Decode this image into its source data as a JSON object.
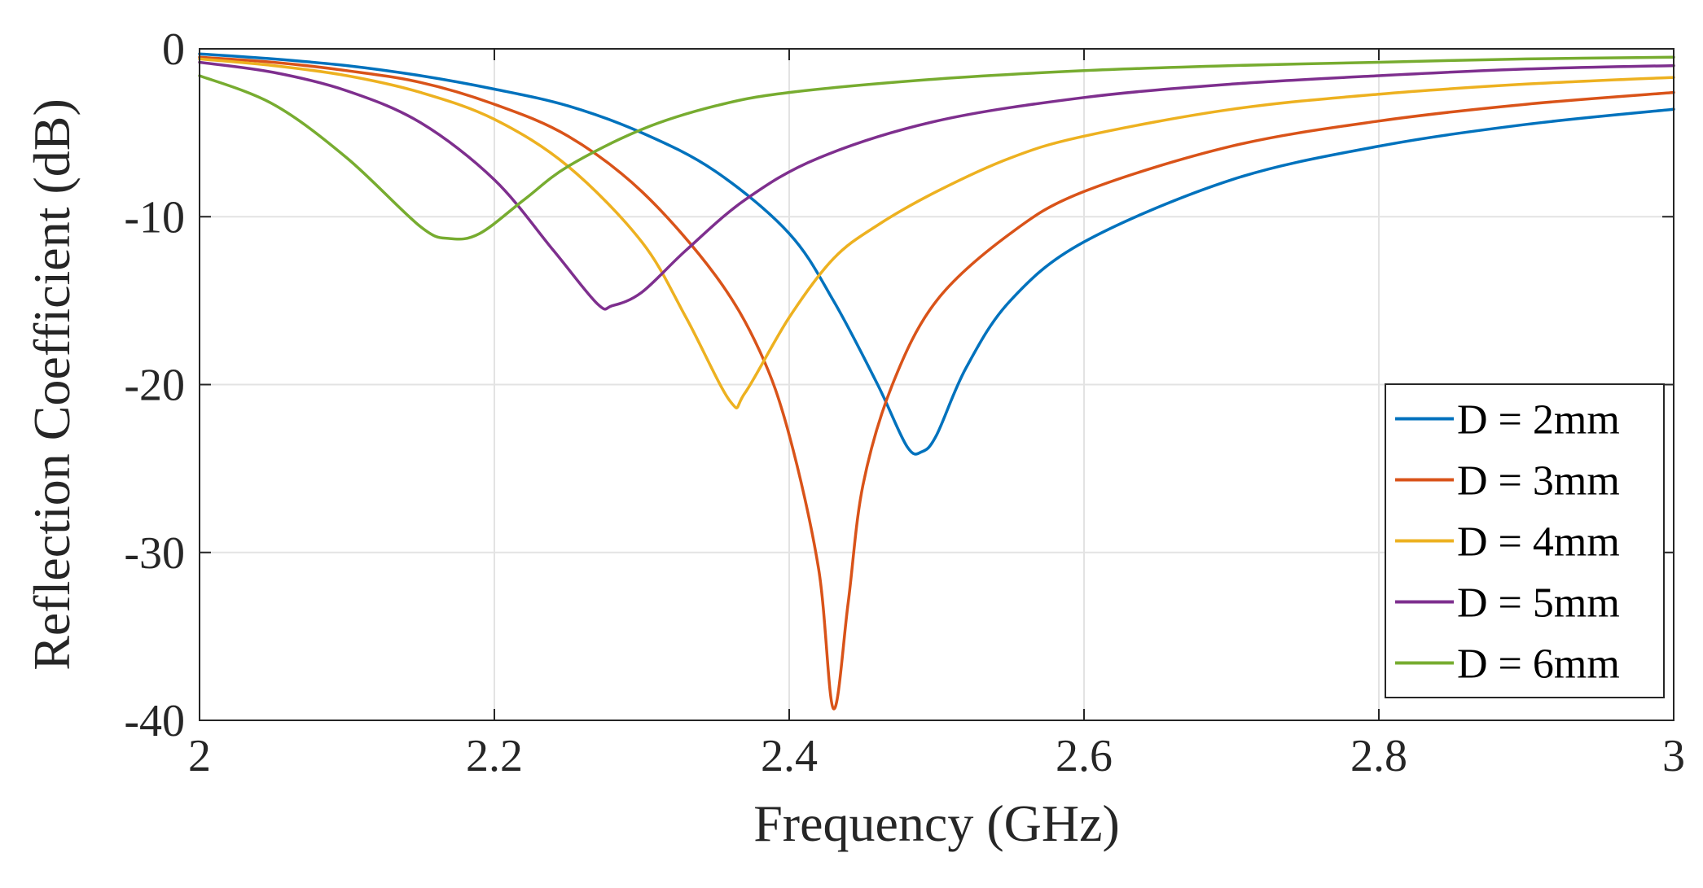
{
  "chart_data": {
    "type": "line",
    "title": "",
    "xlabel": "Frequency (GHz)",
    "ylabel": "Reflection Coefficient (dB)",
    "xlim": [
      2,
      3
    ],
    "ylim": [
      -40,
      0
    ],
    "grid": true,
    "legend_position": "bottom-right",
    "x_ticks": [
      "2",
      "2.2",
      "2.4",
      "2.6",
      "2.8",
      "3"
    ],
    "y_ticks": [
      "0",
      "-10",
      "-20",
      "-30",
      "-40"
    ],
    "x_tick_values": [
      2,
      2.2,
      2.4,
      2.6,
      2.8,
      3
    ],
    "y_tick_values": [
      0,
      -10,
      -20,
      -30,
      -40
    ],
    "series": [
      {
        "name": "D = 2mm",
        "color": "#0072BD",
        "x": [
          2.0,
          2.05,
          2.1,
          2.15,
          2.2,
          2.25,
          2.3,
          2.35,
          2.4,
          2.43,
          2.46,
          2.48,
          2.49,
          2.5,
          2.52,
          2.55,
          2.6,
          2.7,
          2.8,
          2.9,
          3.0
        ],
        "y": [
          -0.3,
          -0.6,
          -1.0,
          -1.6,
          -2.4,
          -3.4,
          -5.0,
          -7.3,
          -11.0,
          -15.0,
          -20.0,
          -23.7,
          -24.0,
          -23.0,
          -19.0,
          -15.0,
          -11.5,
          -7.8,
          -5.8,
          -4.5,
          -3.6
        ]
      },
      {
        "name": "D = 3mm",
        "color": "#D95319",
        "x": [
          2.0,
          2.05,
          2.1,
          2.15,
          2.2,
          2.25,
          2.3,
          2.35,
          2.38,
          2.4,
          2.42,
          2.43,
          2.44,
          2.45,
          2.47,
          2.5,
          2.55,
          2.6,
          2.7,
          2.8,
          2.9,
          3.0
        ],
        "y": [
          -0.5,
          -0.8,
          -1.3,
          -2.0,
          -3.3,
          -5.2,
          -8.5,
          -13.5,
          -18.0,
          -23.0,
          -31.0,
          -39.3,
          -33.0,
          -26.0,
          -20.0,
          -15.0,
          -11.0,
          -8.5,
          -5.8,
          -4.3,
          -3.3,
          -2.6
        ]
      },
      {
        "name": "D = 4mm",
        "color": "#EDB120",
        "x": [
          2.0,
          2.05,
          2.1,
          2.15,
          2.2,
          2.25,
          2.3,
          2.33,
          2.36,
          2.37,
          2.4,
          2.43,
          2.46,
          2.5,
          2.55,
          2.6,
          2.7,
          2.8,
          2.9,
          3.0
        ],
        "y": [
          -0.6,
          -1.0,
          -1.6,
          -2.6,
          -4.2,
          -7.0,
          -11.5,
          -16.0,
          -21.0,
          -20.5,
          -16.0,
          -12.5,
          -10.5,
          -8.5,
          -6.5,
          -5.2,
          -3.6,
          -2.7,
          -2.1,
          -1.7
        ]
      },
      {
        "name": "D = 5mm",
        "color": "#7E2F8E",
        "x": [
          2.0,
          2.05,
          2.1,
          2.15,
          2.2,
          2.24,
          2.27,
          2.28,
          2.3,
          2.33,
          2.37,
          2.42,
          2.5,
          2.6,
          2.7,
          2.8,
          2.9,
          3.0
        ],
        "y": [
          -0.8,
          -1.4,
          -2.5,
          -4.4,
          -7.8,
          -12.0,
          -15.2,
          -15.3,
          -14.5,
          -12.0,
          -9.0,
          -6.5,
          -4.3,
          -2.9,
          -2.1,
          -1.6,
          -1.2,
          -1.0
        ]
      },
      {
        "name": "D = 6mm",
        "color": "#77AC30",
        "x": [
          2.0,
          2.05,
          2.1,
          2.15,
          2.17,
          2.19,
          2.22,
          2.25,
          2.3,
          2.35,
          2.4,
          2.5,
          2.6,
          2.7,
          2.8,
          2.9,
          3.0
        ],
        "y": [
          -1.6,
          -3.3,
          -6.5,
          -10.6,
          -11.3,
          -11.0,
          -9.0,
          -7.0,
          -4.8,
          -3.4,
          -2.6,
          -1.8,
          -1.3,
          -1.0,
          -0.8,
          -0.6,
          -0.5
        ]
      }
    ]
  }
}
